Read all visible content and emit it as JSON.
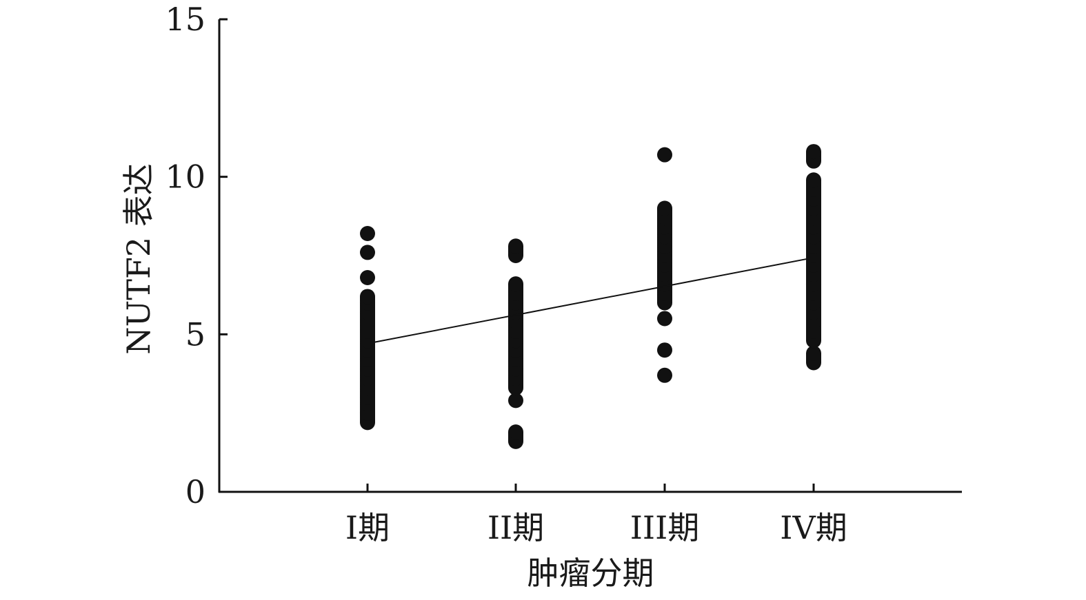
{
  "chart_data": {
    "type": "scatter",
    "xlabel": "肿瘤分期",
    "ylabel": "NUTF2 表达",
    "ylim": [
      0,
      15
    ],
    "yticks": [
      0,
      5,
      10,
      15
    ],
    "categories": [
      "I期",
      "II期",
      "III期",
      "IV期"
    ],
    "grid": false,
    "legend": "none",
    "point_color": "#111111",
    "groups": [
      {
        "category": "I期",
        "values": [
          2.2,
          2.5,
          2.8,
          3.0,
          3.3,
          3.6,
          3.9,
          4.2,
          4.5,
          4.8,
          5.1,
          5.4,
          5.7,
          6.0,
          6.2,
          6.8,
          7.6,
          8.2
        ]
      },
      {
        "category": "II期",
        "values": [
          1.6,
          1.9,
          2.9,
          3.3,
          3.6,
          3.9,
          4.2,
          4.5,
          4.8,
          5.1,
          5.4,
          5.7,
          6.0,
          6.3,
          6.6,
          7.5,
          7.8
        ]
      },
      {
        "category": "III期",
        "values": [
          3.7,
          4.5,
          5.5,
          6.0,
          6.3,
          6.6,
          6.9,
          7.2,
          7.5,
          7.8,
          8.1,
          8.4,
          8.7,
          9.0,
          10.7
        ]
      },
      {
        "category": "IV期",
        "values": [
          4.1,
          4.4,
          4.8,
          5.1,
          5.4,
          5.7,
          6.0,
          6.3,
          6.6,
          6.9,
          7.2,
          7.5,
          7.8,
          8.1,
          8.4,
          8.7,
          9.0,
          9.3,
          9.6,
          9.9,
          10.5,
          10.8
        ]
      }
    ],
    "trend_line": {
      "values": [
        4.75,
        5.6,
        6.5,
        7.4
      ]
    }
  }
}
